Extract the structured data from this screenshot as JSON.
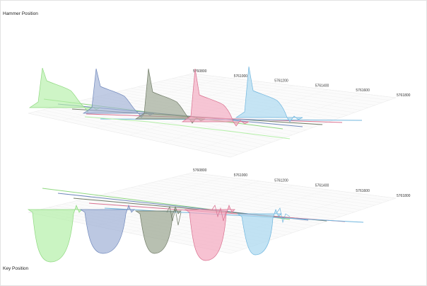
{
  "chart_data": [
    {
      "type": "area",
      "title": "Hammer Position",
      "x_ticks": [
        "5760800",
        "5761000",
        "5761200",
        "5761400",
        "5761600",
        "5761800"
      ],
      "grid": true,
      "series": [
        {
          "color": "#b4f0a8",
          "line": "#8fd880",
          "peak_x": 0.04
        },
        {
          "color": "#9fb0d6",
          "line": "#7088bb",
          "peak_x": 0.17
        },
        {
          "color": "#9aa590",
          "line": "#6f7a66",
          "peak_x": 0.3
        },
        {
          "color": "#f3a8bf",
          "line": "#d9708f",
          "peak_x": 0.62
        },
        {
          "color": "#a8d7f0",
          "line": "#70b6de",
          "peak_x": 0.75
        }
      ]
    },
    {
      "type": "area",
      "title": "Key Position",
      "x_ticks": [
        "5760800",
        "5761000",
        "5761200",
        "5761400",
        "5761600",
        "5761800"
      ],
      "grid": true,
      "series": [
        {
          "color": "#b4f0a8",
          "line": "#8fd880"
        },
        {
          "color": "#9fb0d6",
          "line": "#7088bb"
        },
        {
          "color": "#9aa590",
          "line": "#6f7a66"
        },
        {
          "color": "#f3a8bf",
          "line": "#d9708f"
        },
        {
          "color": "#a8d7f0",
          "line": "#70b6de"
        }
      ]
    }
  ]
}
